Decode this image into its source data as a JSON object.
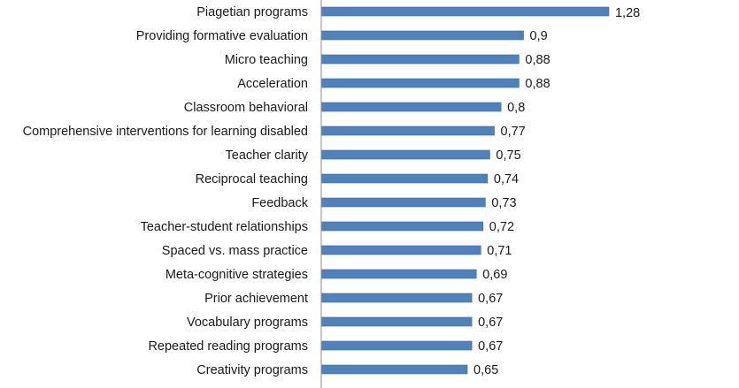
{
  "chart_data": {
    "type": "bar",
    "orientation": "horizontal",
    "title": "",
    "xlabel": "",
    "ylabel": "",
    "bar_color": "#4f81bd",
    "categories": [
      "Piagetian programs",
      "Providing formative evaluation",
      "Micro teaching",
      "Acceleration",
      "Classroom behavioral",
      "Comprehensive interventions for learning disabled",
      "Teacher clarity",
      "Reciprocal teaching",
      "Feedback",
      "Teacher-student relationships",
      "Spaced vs. mass practice",
      "Meta-cognitive strategies",
      "Prior achievement",
      "Vocabulary programs",
      "Repeated reading programs",
      "Creativity programs"
    ],
    "values": [
      1.28,
      0.9,
      0.88,
      0.88,
      0.8,
      0.77,
      0.75,
      0.74,
      0.73,
      0.72,
      0.71,
      0.69,
      0.67,
      0.67,
      0.67,
      0.65
    ],
    "value_labels": [
      "1,28",
      "0,9",
      "0,88",
      "0,88",
      "0,8",
      "0,77",
      "0,75",
      "0,74",
      "0,73",
      "0,72",
      "0,71",
      "0,69",
      "0,67",
      "0,67",
      "0,67",
      "0,65"
    ],
    "grid": false,
    "legend": "none"
  }
}
